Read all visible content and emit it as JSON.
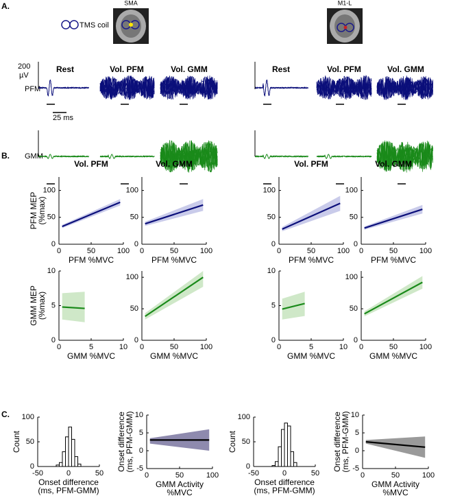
{
  "panel_labels": [
    "A.",
    "B.",
    "C."
  ],
  "panel_a": {
    "sites": [
      "SMA",
      "M1-L"
    ],
    "coil": "TMS coil",
    "conditions": [
      "Rest",
      "Vol. PFM",
      "Vol. GMM"
    ],
    "scale_amp": [
      "200",
      "µV"
    ],
    "scale_time": "25 ms",
    "muscles": [
      "PFM",
      "GMM"
    ]
  },
  "chart_data": [
    {
      "type": "line",
      "title": "Vol. PFM",
      "ylabel": [
        "PFM MEP",
        "(%max)"
      ],
      "xlabel": "PFM %MVC",
      "xlim": [
        0,
        100
      ],
      "xticks": [
        0,
        50,
        100
      ],
      "ylim": [
        0,
        125
      ],
      "yticks": [
        0,
        50,
        100
      ],
      "x": [
        5,
        95
      ],
      "series": [
        {
          "color": "#0b0f7a",
          "band_color": "#c9cbea",
          "values": [
            33,
            78
          ],
          "lower": [
            30,
            72
          ],
          "upper": [
            36,
            84
          ]
        }
      ]
    },
    {
      "type": "line",
      "title": "Vol. GMM",
      "xlabel": "PFM %MVC",
      "xlim": [
        0,
        100
      ],
      "xticks": [
        0,
        50,
        100
      ],
      "ylim": [
        0,
        125
      ],
      "yticks": [
        0,
        50,
        100
      ],
      "x": [
        5,
        95
      ],
      "series": [
        {
          "color": "#0b0f7a",
          "band_color": "#c9cbea",
          "values": [
            38,
            73
          ],
          "lower": [
            34,
            62
          ],
          "upper": [
            42,
            84
          ]
        }
      ]
    },
    {
      "type": "line",
      "title": "Vol. PFM",
      "xlabel": "PFM %MVC",
      "xlim": [
        0,
        100
      ],
      "xticks": [
        0,
        50,
        100
      ],
      "ylim": [
        0,
        125
      ],
      "yticks": [
        0,
        50,
        100
      ],
      "x": [
        5,
        95
      ],
      "series": [
        {
          "color": "#0b0f7a",
          "band_color": "#c9cbea",
          "values": [
            28,
            76
          ],
          "lower": [
            24,
            62
          ],
          "upper": [
            32,
            90
          ]
        }
      ]
    },
    {
      "type": "line",
      "title": "Vol. GMM",
      "xlabel": "PFM %MVC",
      "xlim": [
        0,
        100
      ],
      "xticks": [
        0,
        50,
        100
      ],
      "ylim": [
        0,
        125
      ],
      "yticks": [
        0,
        50,
        100
      ],
      "x": [
        5,
        95
      ],
      "series": [
        {
          "color": "#0b0f7a",
          "band_color": "#c9cbea",
          "values": [
            30,
            65
          ],
          "lower": [
            27,
            57
          ],
          "upper": [
            33,
            73
          ]
        }
      ]
    },
    {
      "type": "line",
      "ylabel": [
        "GMM MEP",
        "(%max)"
      ],
      "xlabel": "GMM %MVC",
      "xlim": [
        0,
        10
      ],
      "xticks": [
        0,
        5,
        10
      ],
      "ylim": [
        0,
        10
      ],
      "yticks": [
        0,
        5,
        10
      ],
      "x": [
        0.5,
        4
      ],
      "series": [
        {
          "color": "#1a8a1a",
          "band_color": "#cfe8c8",
          "values": [
            4.8,
            4.6
          ],
          "lower": [
            3,
            2.6
          ],
          "upper": [
            6.8,
            7
          ]
        }
      ]
    },
    {
      "type": "line",
      "xlabel": "GMM %MVC",
      "xlim": [
        0,
        100
      ],
      "xticks": [
        0,
        50,
        100
      ],
      "ylim": [
        0,
        110
      ],
      "yticks": [
        0,
        50,
        100
      ],
      "x": [
        5,
        95
      ],
      "series": [
        {
          "color": "#1a8a1a",
          "band_color": "#cfe8c8",
          "values": [
            38,
            100
          ],
          "lower": [
            33,
            85
          ],
          "upper": [
            43,
            110
          ]
        }
      ]
    },
    {
      "type": "line",
      "xlabel": "GMM %MVC",
      "xlim": [
        0,
        10
      ],
      "xticks": [
        0,
        5,
        10
      ],
      "ylim": [
        0,
        10
      ],
      "yticks": [
        0,
        5,
        10
      ],
      "x": [
        0.5,
        4
      ],
      "series": [
        {
          "color": "#1a8a1a",
          "band_color": "#cfe8c8",
          "values": [
            4.5,
            5.3
          ],
          "lower": [
            3,
            3.5
          ],
          "upper": [
            6,
            7
          ]
        }
      ]
    },
    {
      "type": "line",
      "xlabel": "GMM %MVC",
      "xlim": [
        0,
        100
      ],
      "xticks": [
        0,
        50,
        100
      ],
      "ylim": [
        0,
        110
      ],
      "yticks": [
        0,
        50,
        100
      ],
      "x": [
        5,
        95
      ],
      "series": [
        {
          "color": "#1a8a1a",
          "band_color": "#cfe8c8",
          "values": [
            42,
            92
          ],
          "lower": [
            38,
            82
          ],
          "upper": [
            46,
            102
          ]
        }
      ]
    },
    {
      "type": "histogram",
      "ylabel": "Count",
      "xlabel": [
        "Onset difference",
        "(ms, PFM-GMM)"
      ],
      "xlim": [
        -50,
        50
      ],
      "xticks": [
        -50,
        0,
        50
      ],
      "ylim": [
        0,
        100
      ],
      "yticks": [
        0,
        50,
        100
      ],
      "bins": [
        -20,
        -15,
        -10,
        -5,
        0,
        5,
        10,
        15,
        20
      ],
      "values": [
        3,
        8,
        30,
        60,
        80,
        55,
        20,
        5
      ],
      "color": "#ffffff"
    },
    {
      "type": "line",
      "ylabel": [
        "Onset difference",
        "(ms, PFM-GMM)"
      ],
      "xlabel": [
        "GMM Activity",
        "%MVC"
      ],
      "xlim": [
        0,
        100
      ],
      "xticks": [
        0,
        50,
        100
      ],
      "ylim": [
        -5,
        10
      ],
      "yticks": [
        -5,
        0,
        5,
        10
      ],
      "x": [
        5,
        95
      ],
      "series": [
        {
          "color": "#000000",
          "band_color": "#8e8aae",
          "values": [
            3,
            3
          ],
          "lower": [
            2,
            0
          ],
          "upper": [
            3.5,
            6
          ]
        }
      ]
    },
    {
      "type": "histogram",
      "ylabel": "Count",
      "xlabel": [
        "Onset difference",
        "(ms, PFM-GMM)"
      ],
      "xlim": [
        -50,
        50
      ],
      "xticks": [
        -50,
        0,
        50
      ],
      "ylim": [
        0,
        100
      ],
      "yticks": [
        0,
        50,
        100
      ],
      "bins": [
        -20,
        -15,
        -10,
        -5,
        0,
        5,
        10,
        15,
        20
      ],
      "values": [
        2,
        10,
        40,
        75,
        88,
        82,
        30,
        8
      ],
      "color": "#ffffff"
    },
    {
      "type": "line",
      "ylabel": [
        "Onset difference",
        "(ms, PFM-GMM)"
      ],
      "xlabel": [
        "GMM Activity",
        "%MVC"
      ],
      "xlim": [
        0,
        100
      ],
      "xticks": [
        0,
        50,
        100
      ],
      "ylim": [
        -5,
        10
      ],
      "yticks": [
        -5,
        0,
        5,
        10
      ],
      "x": [
        5,
        95
      ],
      "series": [
        {
          "color": "#000000",
          "band_color": "#9a9a9a",
          "values": [
            2.5,
            1
          ],
          "lower": [
            2,
            -2
          ],
          "upper": [
            3,
            4
          ]
        }
      ]
    }
  ]
}
